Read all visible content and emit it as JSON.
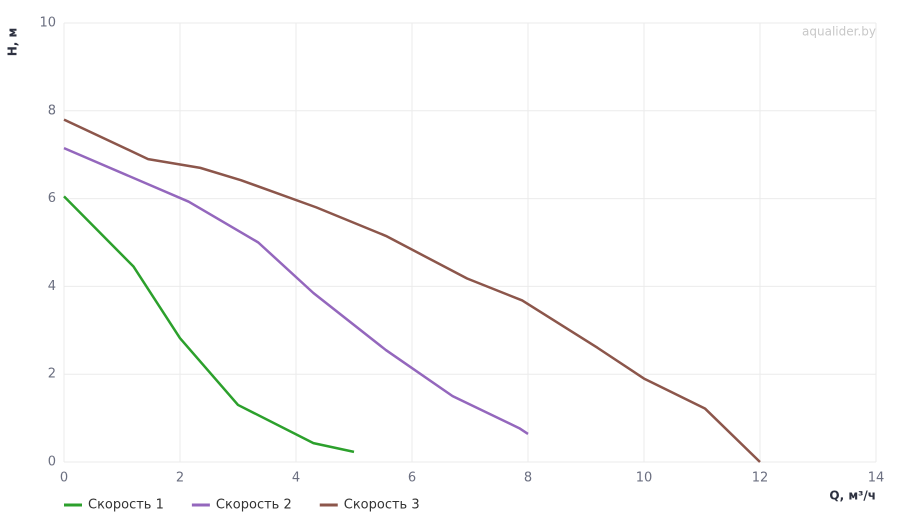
{
  "chart_data": {
    "type": "line",
    "watermark": "aqualider.by",
    "x_label": "Q, м³/ч",
    "y_label": "H, м",
    "xlim": [
      0,
      14
    ],
    "xticks": [
      0,
      2,
      4,
      6,
      8,
      10,
      12,
      14
    ],
    "ylim": [
      0,
      10
    ],
    "yticks": [
      0,
      2,
      4,
      6,
      8,
      10
    ],
    "grid": true,
    "legend": "bottom-left",
    "series": [
      {
        "name": "Скорость 1",
        "color": "#2ca02c",
        "x": [
          0,
          1.2,
          2.0,
          3.0,
          4.3,
          5.0
        ],
        "values": [
          6.05,
          4.45,
          2.82,
          1.3,
          0.43,
          0.23
        ]
      },
      {
        "name": "Скорость 2",
        "color": "#9467bd",
        "x": [
          0,
          2.15,
          3.35,
          4.3,
          5.55,
          6.7,
          7.85,
          8.0
        ],
        "values": [
          7.15,
          5.93,
          5.0,
          3.85,
          2.55,
          1.5,
          0.77,
          0.64
        ]
      },
      {
        "name": "Скорость 3",
        "color": "#8c564b",
        "x": [
          0,
          1.45,
          2.35,
          3.05,
          4.35,
          5.55,
          6.95,
          7.9,
          9.2,
          10.0,
          11.05,
          12.0
        ],
        "values": [
          7.8,
          6.9,
          6.7,
          6.42,
          5.8,
          5.15,
          4.18,
          3.68,
          2.6,
          1.9,
          1.22,
          0
        ]
      }
    ]
  }
}
